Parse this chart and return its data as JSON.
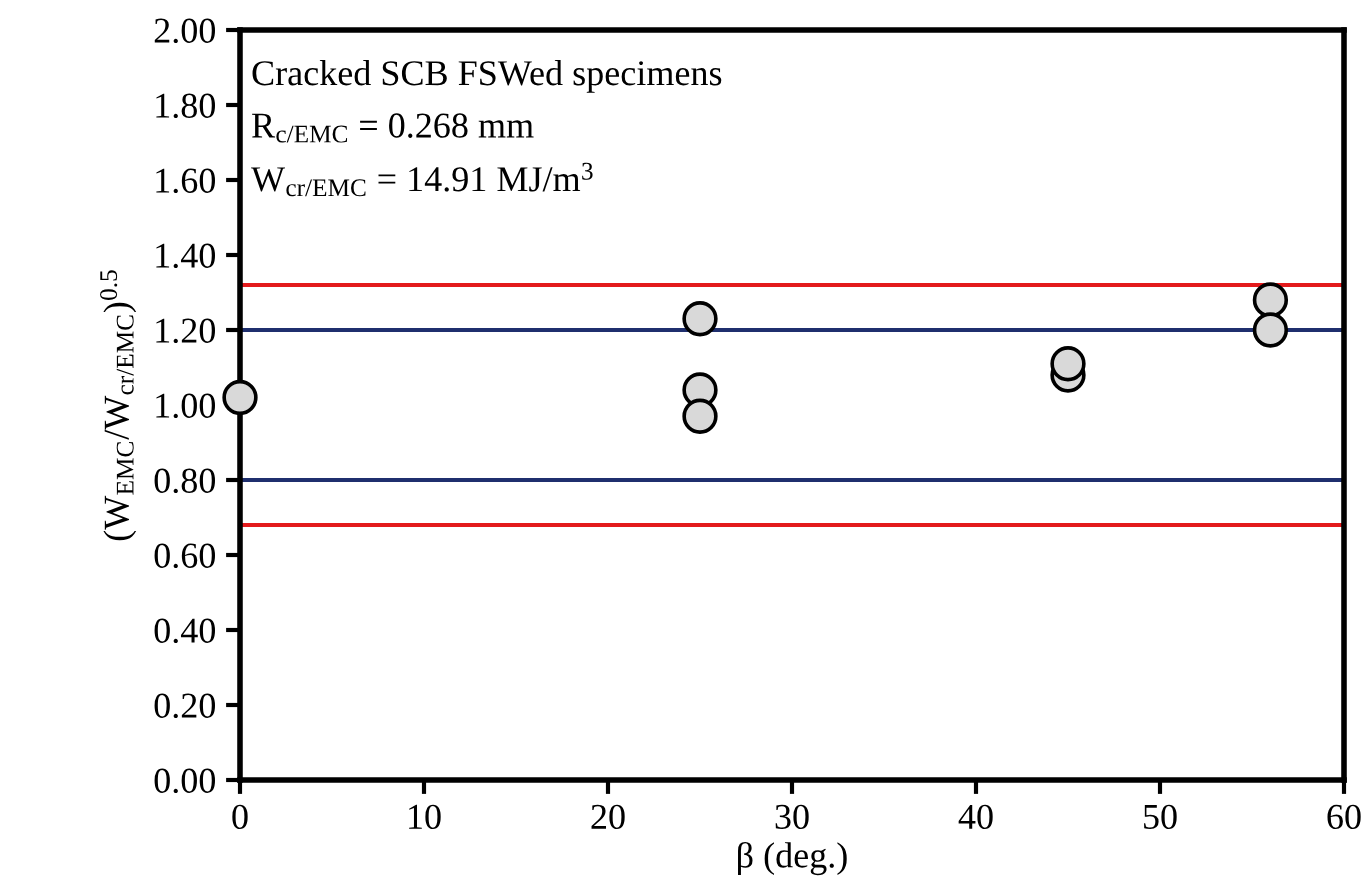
{
  "chart_data": {
    "type": "scatter",
    "xlabel": "β (deg.)",
    "ylabel": "(W$_{EMC}$/W$_{cr/EMC}$)$^{0.5}$",
    "annotations": [
      "Cracked SCB FSWed specimens",
      "R$_{c/EMC}$ = 0.268 mm",
      "W$_{cr/EMC}$ = 14.91 MJ/m$^{3}$"
    ],
    "series": [
      {
        "color": "#d9d9d9",
        "x": [
          0,
          25,
          25,
          25,
          45,
          45,
          56,
          56
        ],
        "values": [
          1.02,
          1.23,
          1.04,
          0.97,
          1.08,
          1.11,
          1.28,
          1.2
        ]
      }
    ],
    "marker": "circle",
    "grid": false,
    "legend": false,
    "xlim": [
      0,
      60
    ],
    "xticks": [
      0,
      10,
      20,
      30,
      40,
      50,
      60
    ],
    "ylim": [
      0,
      2
    ],
    "yticks": [
      {
        "value": 0,
        "label": "0.00"
      },
      {
        "value": 0.2,
        "label": "0.20"
      },
      {
        "value": 0.4,
        "label": "0.40"
      },
      {
        "value": 0.6,
        "label": "0.60"
      },
      {
        "value": 0.8,
        "label": "0.80"
      },
      {
        "value": 1.0,
        "label": "1.00"
      },
      {
        "value": 1.2,
        "label": "1.20"
      },
      {
        "value": 1.4,
        "label": "1.40"
      },
      {
        "value": 1.6,
        "label": "1.60"
      },
      {
        "value": 1.8,
        "label": "1.80"
      },
      {
        "value": 2.0,
        "label": "2.00"
      }
    ],
    "ref_lines": [
      {
        "axis": "y",
        "value": 1.32,
        "color": "#e31a1c"
      },
      {
        "axis": "y",
        "value": 0.68,
        "color": "#e31a1c"
      },
      {
        "axis": "y",
        "value": 1.2,
        "color": "#1f2f6e"
      },
      {
        "axis": "y",
        "value": 0.8,
        "color": "#1f2f6e"
      }
    ]
  }
}
